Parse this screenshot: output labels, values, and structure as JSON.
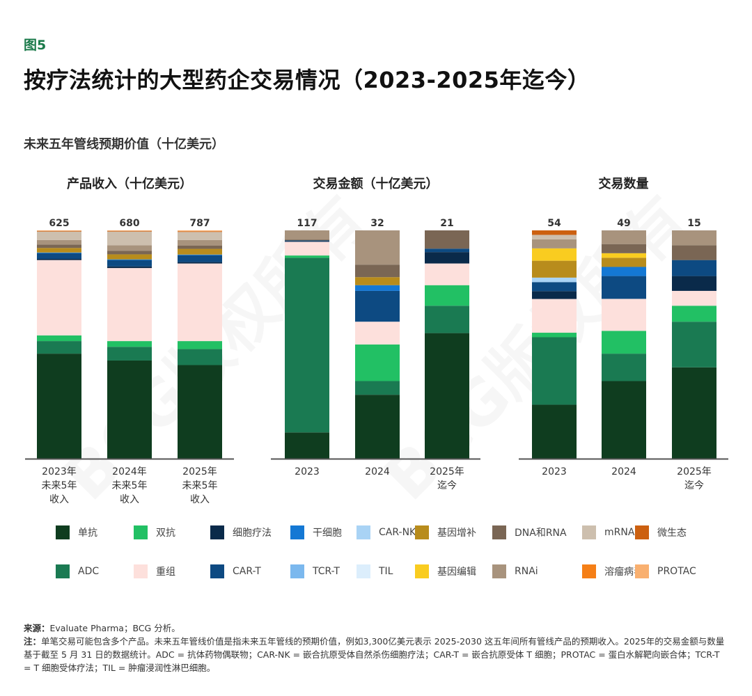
{
  "figure_label": "图5",
  "title": "按疗法统计的大型药企交易情况（2023-2025年迄今）",
  "subtitle": "未来五年管线预期价值（十亿美元）",
  "watermark": "BCG版权所有",
  "colors": {
    "单抗": "#0f3d1f",
    "ADC": "#1a7a52",
    "双抗": "#22c064",
    "重组": "#fde0dc",
    "细胞疗法": "#0a2a4a",
    "CAR-T": "#0d4a82",
    "干细胞": "#1478d4",
    "TCR-T": "#7bb8ee",
    "CAR-NK": "#a9d3f5",
    "TIL": "#dceefc",
    "基因增补": "#b88c1c",
    "基因编辑": "#f9cc20",
    "DNA和RNA": "#7a6654",
    "RNAi": "#a8937d",
    "mRNA": "#cdbfae",
    "溶瘤病毒": "#f57f17",
    "微生态": "#cc6010",
    "PROTAC": "#f9b070"
  },
  "legend": [
    [
      "单抗",
      "双抗",
      "细胞疗法",
      "干细胞",
      "CAR-NK",
      "基因增补",
      "DNA和RNA",
      "mRNA",
      "微生态"
    ],
    [
      "ADC",
      "重组",
      "CAR-T",
      "TCR-T",
      "TIL",
      "基因编辑",
      "RNAi",
      "溶瘤病毒",
      "PROTAC"
    ]
  ],
  "chart_data": [
    {
      "type": "bar",
      "stacked": "100%",
      "title": "产品收入（十亿美元）",
      "categories": [
        [
          "2023年",
          "未来5年",
          "收入"
        ],
        [
          "2024年",
          "未来5年",
          "收入"
        ],
        [
          "2025年",
          "未来5年",
          "收入"
        ]
      ],
      "totals": [
        "625",
        "680",
        "787"
      ],
      "series": [
        {
          "name": "单抗",
          "values": [
            46,
            43,
            41
          ]
        },
        {
          "name": "ADC",
          "values": [
            5.5,
            6,
            7
          ]
        },
        {
          "name": "双抗",
          "values": [
            2.5,
            2.5,
            3.5
          ]
        },
        {
          "name": "重组",
          "values": [
            33,
            32,
            34
          ]
        },
        {
          "name": "细胞疗法",
          "values": [
            0.5,
            0.7,
            0.6
          ]
        },
        {
          "name": "CAR-T",
          "values": [
            2.5,
            2.8,
            3
          ]
        },
        {
          "name": "干细胞",
          "values": [
            0.3,
            0.3,
            0.3
          ]
        },
        {
          "name": "基因增补",
          "values": [
            2,
            2.2,
            2.5
          ]
        },
        {
          "name": "DNA和RNA",
          "values": [
            1.5,
            1.5,
            1.5
          ]
        },
        {
          "name": "RNAi",
          "values": [
            2,
            2.5,
            2.4
          ]
        },
        {
          "name": "mRNA",
          "values": [
            3.7,
            6,
            3.5
          ]
        },
        {
          "name": "微生态",
          "values": [
            0.3,
            0.3,
            0.3
          ]
        },
        {
          "name": "PROTAC",
          "values": [
            0.2,
            0.2,
            0.4
          ]
        }
      ]
    },
    {
      "type": "bar",
      "stacked": "100%",
      "title": "交易金额（十亿美元）",
      "categories": [
        [
          "2023"
        ],
        [
          "2024"
        ],
        [
          "2025年",
          "迄今"
        ]
      ],
      "totals": [
        "117",
        "32",
        "21"
      ],
      "series": [
        {
          "name": "单抗",
          "values": [
            11.5,
            28,
            55
          ]
        },
        {
          "name": "ADC",
          "values": [
            76.5,
            6,
            12
          ]
        },
        {
          "name": "双抗",
          "values": [
            1,
            16,
            9
          ]
        },
        {
          "name": "重组",
          "values": [
            6,
            10,
            9.5
          ]
        },
        {
          "name": "细胞疗法",
          "values": [
            0.3,
            0,
            5
          ]
        },
        {
          "name": "CAR-T",
          "values": [
            0.3,
            13.5,
            1.5
          ]
        },
        {
          "name": "干细胞",
          "values": [
            0,
            2.5,
            0
          ]
        },
        {
          "name": "基因增补",
          "values": [
            0,
            3.5,
            0
          ]
        },
        {
          "name": "DNA和RNA",
          "values": [
            0.4,
            5.5,
            8
          ]
        },
        {
          "name": "RNAi",
          "values": [
            4,
            15,
            0
          ]
        }
      ]
    },
    {
      "type": "bar",
      "stacked": "100%",
      "title": "交易数量",
      "categories": [
        [
          "2023"
        ],
        [
          "2024"
        ],
        [
          "2025年",
          "迄今"
        ]
      ],
      "totals": [
        "54",
        "49",
        "15"
      ],
      "series": [
        {
          "name": "单抗",
          "values": [
            24,
            34,
            40
          ]
        },
        {
          "name": "ADC",
          "values": [
            30,
            12,
            20
          ]
        },
        {
          "name": "双抗",
          "values": [
            2,
            10,
            7
          ]
        },
        {
          "name": "重组",
          "values": [
            15,
            14,
            6.5
          ]
        },
        {
          "name": "细胞疗法",
          "values": [
            3.5,
            0,
            6.5
          ]
        },
        {
          "name": "CAR-T",
          "values": [
            4,
            10,
            7
          ]
        },
        {
          "name": "干细胞",
          "values": [
            0,
            4,
            0
          ]
        },
        {
          "name": "CAR-NK",
          "values": [
            2,
            0,
            0
          ]
        },
        {
          "name": "基因增补",
          "values": [
            7.5,
            4,
            0
          ]
        },
        {
          "name": "基因编辑",
          "values": [
            5.5,
            2,
            0
          ]
        },
        {
          "name": "DNA和RNA",
          "values": [
            0,
            4,
            6.5
          ]
        },
        {
          "name": "RNAi",
          "values": [
            4,
            6,
            6.5
          ]
        },
        {
          "name": "mRNA",
          "values": [
            2,
            0,
            0
          ]
        },
        {
          "name": "微生态",
          "values": [
            2,
            0,
            0
          ]
        }
      ]
    }
  ],
  "footnotes": {
    "source_label": "来源：",
    "source": "Evaluate Pharma；BCG 分析。",
    "note_label": "注：",
    "note": "单笔交易可能包含多个产品。未来五年管线价值是指未来五年管线的预期价值，例如3,300亿美元表示 2025-2030 这五年间所有管线产品的预期收入。2025年的交易金额与数量基于截至 5 月 31 日的数据统计。ADC = 抗体药物偶联物；CAR-NK = 嵌合抗原受体自然杀伤细胞疗法；CAR-T = 嵌合抗原受体 T 细胞；PROTAC = 蛋白水解靶向嵌合体；TCR-T = T 细胞受体疗法；TIL = 肿瘤浸润性淋巴细胞。"
  }
}
